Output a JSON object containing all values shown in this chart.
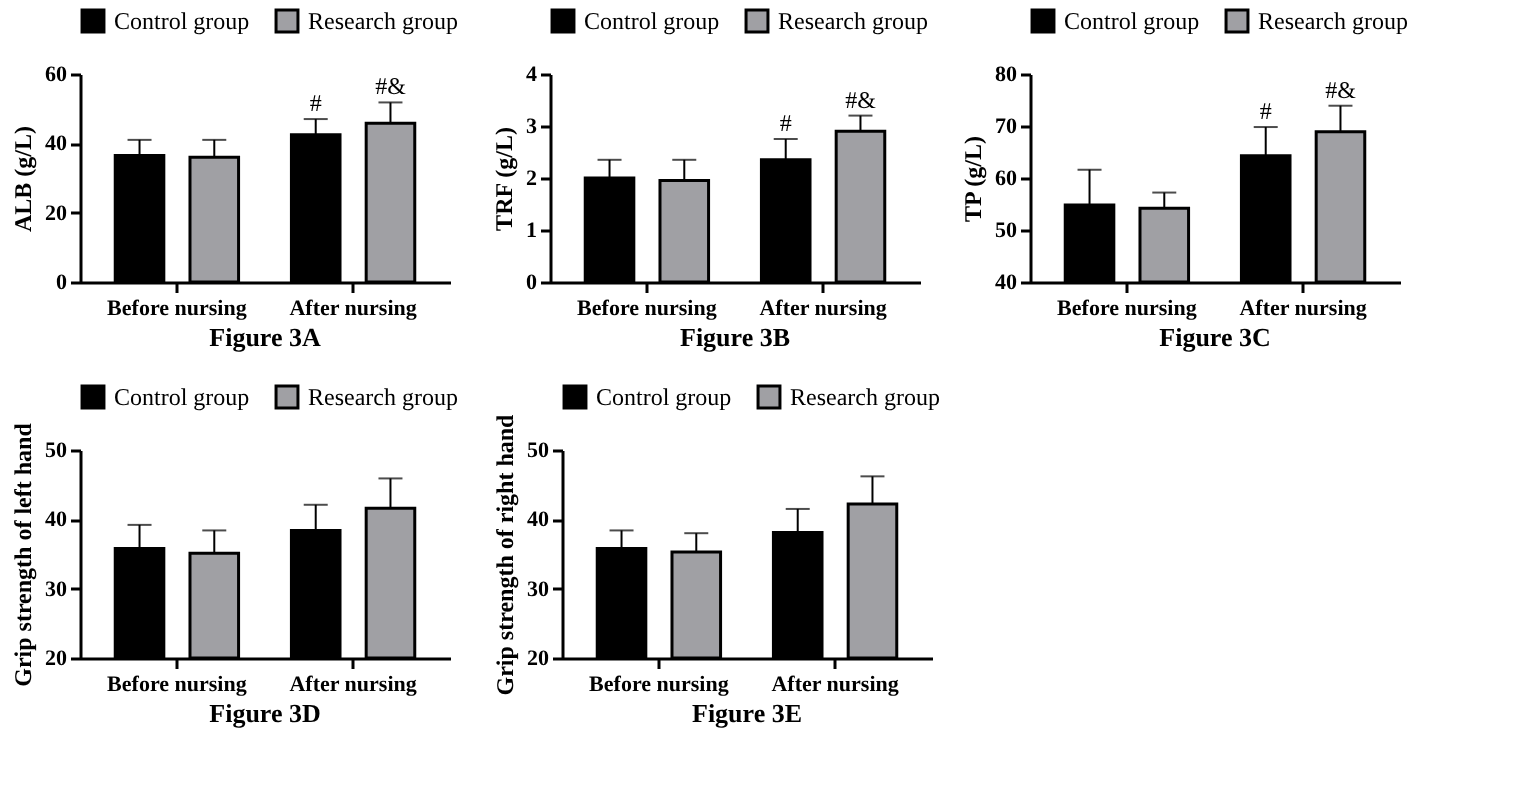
{
  "chart_data": [
    {
      "type": "bar",
      "title": "Figure 3A",
      "ylabel": "ALB (g/L)",
      "categories": [
        "Before nursing",
        "After nursing"
      ],
      "ylim": [
        0,
        60
      ],
      "yticks": [
        0,
        20,
        40,
        60
      ],
      "legend": "top",
      "grid": false,
      "series": [
        {
          "name": "Control group",
          "color": "#000000",
          "values": [
            36.5,
            42.5
          ],
          "errors": [
            4.5,
            4.5
          ],
          "value_labels": [
            null,
            "#"
          ]
        },
        {
          "name": "Research group",
          "color": "#a0a0a4",
          "values": [
            36,
            45.8
          ],
          "errors": [
            5,
            6
          ],
          "value_labels": [
            null,
            "#&"
          ]
        }
      ]
    },
    {
      "type": "bar",
      "title": "Figure 3B",
      "ylabel": "TRF (g/L)",
      "categories": [
        "Before nursing",
        "After nursing"
      ],
      "ylim": [
        0,
        4
      ],
      "yticks": [
        0,
        1,
        2,
        3,
        4
      ],
      "legend": "top",
      "grid": false,
      "series": [
        {
          "name": "Control group",
          "color": "#000000",
          "values": [
            2.0,
            2.35
          ],
          "errors": [
            0.35,
            0.4
          ],
          "value_labels": [
            null,
            "#"
          ]
        },
        {
          "name": "Research group",
          "color": "#a0a0a4",
          "values": [
            1.95,
            2.9
          ],
          "errors": [
            0.4,
            0.3
          ],
          "value_labels": [
            null,
            "#&"
          ]
        }
      ]
    },
    {
      "type": "bar",
      "title": "Figure 3C",
      "ylabel": "TP (g/L)",
      "categories": [
        "Before nursing",
        "After nursing"
      ],
      "ylim": [
        40,
        80
      ],
      "yticks": [
        40,
        50,
        60,
        70,
        80
      ],
      "legend": "top",
      "grid": false,
      "series": [
        {
          "name": "Control group",
          "color": "#000000",
          "values": [
            54.8,
            64.3
          ],
          "errors": [
            6.8,
            5.5
          ],
          "value_labels": [
            null,
            "#"
          ]
        },
        {
          "name": "Research group",
          "color": "#a0a0a4",
          "values": [
            54.2,
            68.9
          ],
          "errors": [
            3,
            5
          ],
          "value_labels": [
            null,
            "#&"
          ]
        }
      ]
    },
    {
      "type": "bar",
      "title": "Figure 3D",
      "ylabel": "Grip strength of left hand",
      "categories": [
        "Before nursing",
        "After nursing"
      ],
      "ylim": [
        20,
        50
      ],
      "yticks": [
        20,
        30,
        40,
        50
      ],
      "legend": "top",
      "grid": false,
      "series": [
        {
          "name": "Control group",
          "color": "#000000",
          "values": [
            35.8,
            38.4
          ],
          "errors": [
            3.4,
            3.7
          ]
        },
        {
          "name": "Research group",
          "color": "#a0a0a4",
          "values": [
            35.1,
            41.6
          ],
          "errors": [
            3.3,
            4.3
          ]
        }
      ]
    },
    {
      "type": "bar",
      "title": "Figure 3E",
      "ylabel": "Grip strength of right hand",
      "categories": [
        "Before nursing",
        "After nursing"
      ],
      "ylim": [
        20,
        50
      ],
      "yticks": [
        20,
        30,
        40,
        50
      ],
      "legend": "top",
      "grid": false,
      "series": [
        {
          "name": "Control group",
          "color": "#000000",
          "values": [
            35.8,
            38.1
          ],
          "errors": [
            2.6,
            3.4
          ]
        },
        {
          "name": "Research group",
          "color": "#a0a0a4",
          "values": [
            35.3,
            42.2
          ],
          "errors": [
            2.7,
            4
          ]
        }
      ]
    }
  ]
}
